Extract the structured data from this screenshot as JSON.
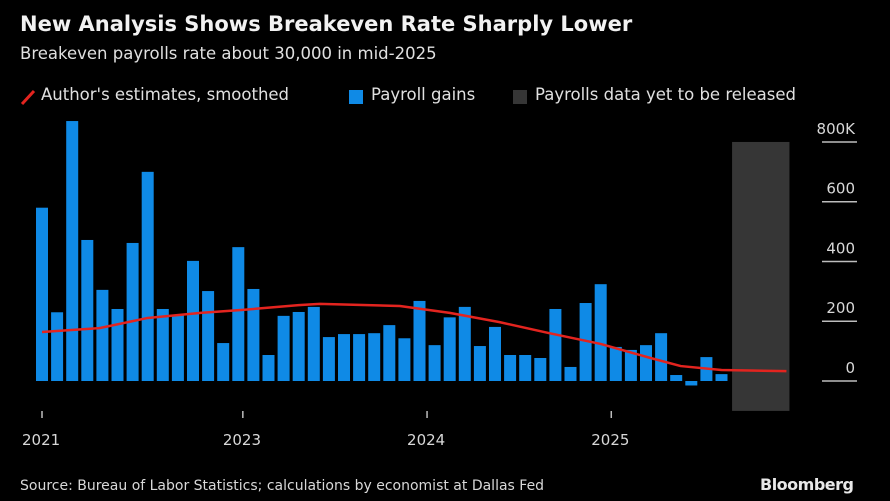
{
  "chart_data": {
    "type": "bar",
    "title": "New Analysis Shows Breakeven Rate Sharply Lower",
    "subtitle": "Breakeven payrolls rate about 30,000 in mid-2025",
    "legend": {
      "placement": "top",
      "items": [
        {
          "label": "Author's estimates, smoothed",
          "color": "#e3241f",
          "kind": "line"
        },
        {
          "label": "Payroll gains",
          "color": "#0f8ae6",
          "kind": "bar"
        },
        {
          "label": "Payrolls data yet to be released",
          "color": "#363636",
          "kind": "area"
        }
      ]
    },
    "x_ticks": [
      {
        "label": "2021",
        "index": 0
      },
      {
        "label": "2023",
        "index": 13.3
      },
      {
        "label": "2024",
        "index": 25.5
      },
      {
        "label": "2025",
        "index": 37.7
      }
    ],
    "y_axis": {
      "position": "right",
      "ylim": [
        -100,
        800
      ],
      "ticks": [
        0,
        200,
        400,
        600,
        800
      ],
      "tick_labels": [
        "0",
        "200",
        "400",
        "600",
        "800K"
      ]
    },
    "grid": false,
    "series": [
      {
        "name": "Payroll gains",
        "type": "bar",
        "values": [
          580,
          230,
          870,
          472,
          305,
          241,
          462,
          700,
          241,
          220,
          402,
          301,
          127,
          448,
          308,
          87,
          218,
          231,
          248,
          147,
          157,
          157,
          160,
          187,
          143,
          268,
          120,
          213,
          248,
          117,
          181,
          87,
          87,
          77,
          241,
          47,
          261,
          324,
          114,
          104,
          120,
          160,
          20,
          -15,
          80,
          23
        ]
      },
      {
        "name": "Author's estimates, smoothed",
        "type": "line",
        "points": [
          [
            0,
            164
          ],
          [
            3.8,
            177
          ],
          [
            7,
            211
          ],
          [
            10.5,
            228
          ],
          [
            13.3,
            238
          ],
          [
            17,
            254
          ],
          [
            18.4,
            258
          ],
          [
            23.7,
            251
          ],
          [
            27,
            228
          ],
          [
            30.3,
            197
          ],
          [
            33.6,
            160
          ],
          [
            37,
            124
          ],
          [
            40.3,
            77
          ],
          [
            42.3,
            50
          ],
          [
            45,
            37
          ],
          [
            49.3,
            33
          ]
        ]
      }
    ],
    "unreleased_range": {
      "from_index": 45.7,
      "to_index": 49.5
    }
  },
  "footer": {
    "source": "Source: Bureau of Labor Statistics; calculations by economist at Dallas Fed",
    "brand": "Bloomberg"
  }
}
